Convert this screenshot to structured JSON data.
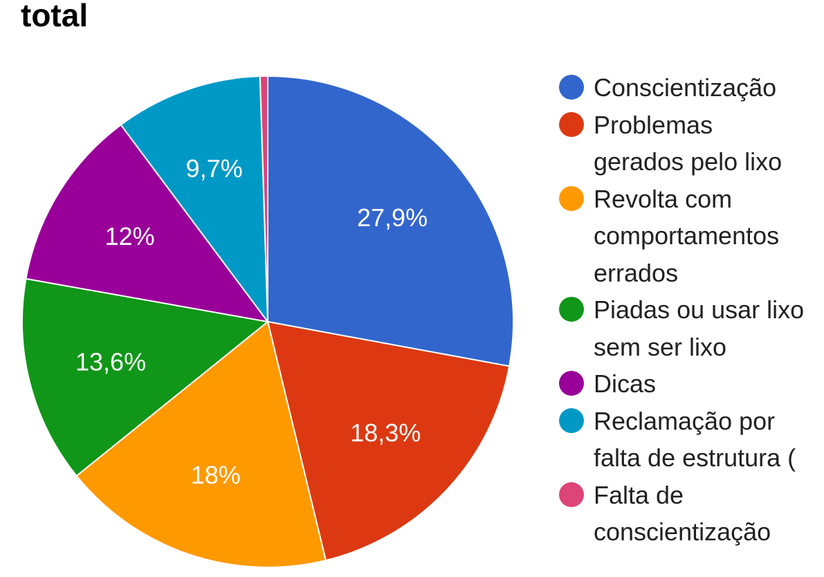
{
  "chart_data": {
    "type": "pie",
    "title": "total",
    "legend_position": "right",
    "slices": [
      {
        "label": "Conscientização",
        "value": 27.9,
        "display": "27,9%",
        "color": "#3366cc"
      },
      {
        "label": "Problemas gerados pelo lixo",
        "value": 18.3,
        "display": "18,3%",
        "color": "#dc3912"
      },
      {
        "label": "Revolta com comportamentos errados",
        "value": 18,
        "display": "18%",
        "color": "#ff9900"
      },
      {
        "label": "Piadas ou usar lixo sem ser lixo",
        "value": 13.6,
        "display": "13,6%",
        "color": "#109618"
      },
      {
        "label": "Dicas",
        "value": 12,
        "display": "12%",
        "color": "#990099"
      },
      {
        "label": "Reclamação por falta de estrutura (",
        "value": 9.7,
        "display": "9,7%",
        "color": "#0099c6"
      },
      {
        "label": "Falta de conscientização",
        "value": 0.5,
        "display": "",
        "color": "#dd4477"
      }
    ],
    "legend_lines": [
      "Conscientização",
      "Problemas\ngerados pelo lixo",
      "Revolta com\ncomportamentos\nerrados",
      "Piadas ou usar lixo\nsem ser lixo",
      "Dicas",
      "Reclamação por\nfalta de estrutura (",
      "Falta de\nconscientização"
    ]
  }
}
